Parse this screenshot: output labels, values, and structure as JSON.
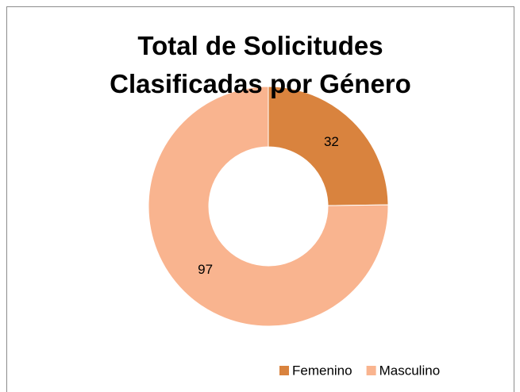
{
  "chart_data": {
    "type": "donut",
    "title": "Total de Solicitudes Clasificadas por Género",
    "categories": [
      "Femenino",
      "Masculino"
    ],
    "values": [
      32,
      97
    ],
    "colors": [
      "#d9833e",
      "#f9b48f"
    ],
    "legend": "bottom"
  }
}
